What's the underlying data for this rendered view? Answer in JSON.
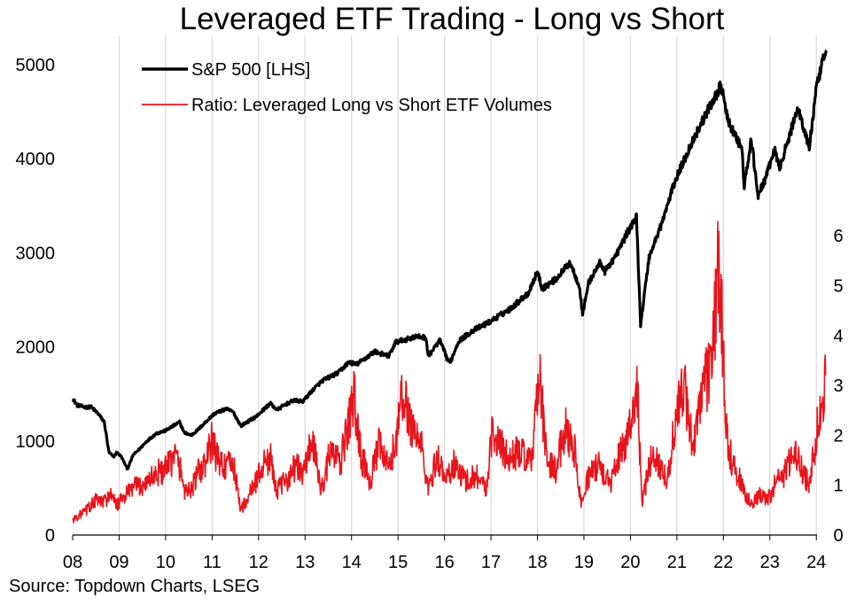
{
  "title": "Leveraged ETF Trading - Long vs Short",
  "source": "Source: Topdown Charts, LSEG",
  "colors": {
    "sp500": "#000000",
    "ratio": "#e8141b",
    "grid": "#d9d9d9"
  },
  "chart_data": {
    "type": "line",
    "title": "Leveraged ETF Trading - Long vs Short",
    "x_tick_labels": [
      "08",
      "09",
      "10",
      "11",
      "12",
      "13",
      "14",
      "15",
      "16",
      "17",
      "18",
      "19",
      "20",
      "21",
      "22",
      "23",
      "24"
    ],
    "x_range": [
      2008.0,
      2024.25
    ],
    "y_left": {
      "range": [
        0,
        5000
      ],
      "ticks": [
        "0",
        "1000",
        "2000",
        "3000",
        "4000",
        "5000"
      ]
    },
    "y_right": {
      "range": [
        0,
        6.3
      ],
      "ticks": [
        "0",
        "1",
        "2",
        "3",
        "4",
        "5",
        "6"
      ]
    },
    "grid": "vertical",
    "legend_position": "top-left",
    "series": [
      {
        "name": "S&P 500 [LHS]",
        "axis": "left",
        "color": "#000000",
        "points": [
          [
            2008.0,
            1450
          ],
          [
            2008.1,
            1380
          ],
          [
            2008.25,
            1360
          ],
          [
            2008.4,
            1360
          ],
          [
            2008.55,
            1290
          ],
          [
            2008.68,
            1200
          ],
          [
            2008.78,
            880
          ],
          [
            2008.88,
            830
          ],
          [
            2008.95,
            880
          ],
          [
            2009.05,
            830
          ],
          [
            2009.18,
            700
          ],
          [
            2009.3,
            850
          ],
          [
            2009.45,
            920
          ],
          [
            2009.6,
            1000
          ],
          [
            2009.8,
            1080
          ],
          [
            2010.0,
            1110
          ],
          [
            2010.3,
            1200
          ],
          [
            2010.4,
            1090
          ],
          [
            2010.55,
            1060
          ],
          [
            2010.7,
            1120
          ],
          [
            2010.9,
            1220
          ],
          [
            2011.05,
            1290
          ],
          [
            2011.3,
            1340
          ],
          [
            2011.45,
            1310
          ],
          [
            2011.62,
            1160
          ],
          [
            2011.75,
            1200
          ],
          [
            2011.95,
            1260
          ],
          [
            2012.25,
            1400
          ],
          [
            2012.4,
            1330
          ],
          [
            2012.55,
            1380
          ],
          [
            2012.75,
            1430
          ],
          [
            2012.95,
            1420
          ],
          [
            2013.2,
            1560
          ],
          [
            2013.4,
            1650
          ],
          [
            2013.7,
            1720
          ],
          [
            2013.95,
            1840
          ],
          [
            2014.1,
            1810
          ],
          [
            2014.5,
            1950
          ],
          [
            2014.8,
            1900
          ],
          [
            2014.95,
            2050
          ],
          [
            2015.4,
            2110
          ],
          [
            2015.6,
            2100
          ],
          [
            2015.65,
            1900
          ],
          [
            2015.9,
            2070
          ],
          [
            2016.05,
            1880
          ],
          [
            2016.12,
            1830
          ],
          [
            2016.3,
            2060
          ],
          [
            2016.6,
            2170
          ],
          [
            2016.95,
            2260
          ],
          [
            2017.4,
            2400
          ],
          [
            2017.8,
            2570
          ],
          [
            2018.0,
            2800
          ],
          [
            2018.1,
            2620
          ],
          [
            2018.4,
            2720
          ],
          [
            2018.7,
            2900
          ],
          [
            2018.9,
            2650
          ],
          [
            2018.97,
            2350
          ],
          [
            2019.1,
            2680
          ],
          [
            2019.35,
            2900
          ],
          [
            2019.45,
            2800
          ],
          [
            2019.7,
            2980
          ],
          [
            2019.95,
            3230
          ],
          [
            2020.13,
            3380
          ],
          [
            2020.22,
            2240
          ],
          [
            2020.4,
            2950
          ],
          [
            2020.7,
            3350
          ],
          [
            2020.95,
            3750
          ],
          [
            2021.3,
            4150
          ],
          [
            2021.6,
            4450
          ],
          [
            2021.95,
            4780
          ],
          [
            2022.1,
            4400
          ],
          [
            2022.4,
            4100
          ],
          [
            2022.45,
            3700
          ],
          [
            2022.6,
            4200
          ],
          [
            2022.75,
            3600
          ],
          [
            2022.95,
            3850
          ],
          [
            2023.1,
            4100
          ],
          [
            2023.2,
            3900
          ],
          [
            2023.4,
            4200
          ],
          [
            2023.6,
            4550
          ],
          [
            2023.8,
            4200
          ],
          [
            2023.85,
            4120
          ],
          [
            2024.0,
            4750
          ],
          [
            2024.15,
            5050
          ],
          [
            2024.22,
            5150
          ]
        ]
      },
      {
        "name": "Ratio: Leveraged Long vs Short ETF Volumes",
        "axis": "right",
        "color": "#e8141b",
        "points": [
          [
            2008.0,
            0.3
          ],
          [
            2008.15,
            0.4
          ],
          [
            2008.3,
            0.5
          ],
          [
            2008.5,
            0.7
          ],
          [
            2008.65,
            0.65
          ],
          [
            2008.8,
            0.8
          ],
          [
            2008.95,
            0.6
          ],
          [
            2009.1,
            0.75
          ],
          [
            2009.3,
            0.95
          ],
          [
            2009.5,
            1.0
          ],
          [
            2009.7,
            1.15
          ],
          [
            2009.85,
            1.25
          ],
          [
            2010.0,
            1.3
          ],
          [
            2010.2,
            1.6
          ],
          [
            2010.3,
            1.4
          ],
          [
            2010.4,
            0.9
          ],
          [
            2010.55,
            0.9
          ],
          [
            2010.7,
            1.25
          ],
          [
            2010.85,
            1.4
          ],
          [
            2011.0,
            1.9
          ],
          [
            2011.1,
            1.55
          ],
          [
            2011.3,
            1.35
          ],
          [
            2011.45,
            1.45
          ],
          [
            2011.62,
            0.5
          ],
          [
            2011.8,
            0.8
          ],
          [
            2011.95,
            1.1
          ],
          [
            2012.1,
            1.4
          ],
          [
            2012.25,
            1.55
          ],
          [
            2012.4,
            0.9
          ],
          [
            2012.6,
            1.1
          ],
          [
            2012.8,
            1.4
          ],
          [
            2012.95,
            1.2
          ],
          [
            2013.15,
            1.9
          ],
          [
            2013.35,
            0.9
          ],
          [
            2013.55,
            1.7
          ],
          [
            2013.75,
            1.4
          ],
          [
            2013.95,
            2.3
          ],
          [
            2014.05,
            2.8
          ],
          [
            2014.2,
            1.6
          ],
          [
            2014.4,
            1.1
          ],
          [
            2014.6,
            1.8
          ],
          [
            2014.8,
            1.3
          ],
          [
            2014.95,
            1.9
          ],
          [
            2015.1,
            2.8
          ],
          [
            2015.3,
            2.2
          ],
          [
            2015.5,
            1.8
          ],
          [
            2015.65,
            0.9
          ],
          [
            2015.85,
            1.6
          ],
          [
            2016.0,
            1.1
          ],
          [
            2016.2,
            1.4
          ],
          [
            2016.45,
            1.1
          ],
          [
            2016.7,
            1.2
          ],
          [
            2016.9,
            0.9
          ],
          [
            2017.0,
            2.0
          ],
          [
            2017.2,
            1.8
          ],
          [
            2017.4,
            1.5
          ],
          [
            2017.6,
            1.7
          ],
          [
            2017.85,
            1.4
          ],
          [
            2017.95,
            2.3
          ],
          [
            2018.05,
            3.1
          ],
          [
            2018.2,
            1.5
          ],
          [
            2018.4,
            1.3
          ],
          [
            2018.6,
            2.2
          ],
          [
            2018.8,
            1.7
          ],
          [
            2018.95,
            0.6
          ],
          [
            2019.1,
            1.2
          ],
          [
            2019.35,
            1.4
          ],
          [
            2019.55,
            1.0
          ],
          [
            2019.8,
            1.7
          ],
          [
            2020.0,
            2.2
          ],
          [
            2020.15,
            3.0
          ],
          [
            2020.25,
            0.6
          ],
          [
            2020.45,
            1.6
          ],
          [
            2020.65,
            1.4
          ],
          [
            2020.8,
            1.1
          ],
          [
            2020.95,
            2.2
          ],
          [
            2021.15,
            3.0
          ],
          [
            2021.35,
            1.8
          ],
          [
            2021.6,
            3.0
          ],
          [
            2021.75,
            3.4
          ],
          [
            2021.85,
            4.9
          ],
          [
            2021.9,
            5.5
          ],
          [
            2021.97,
            4.2
          ],
          [
            2022.05,
            2.2
          ],
          [
            2022.2,
            1.4
          ],
          [
            2022.4,
            1.0
          ],
          [
            2022.6,
            0.6
          ],
          [
            2022.8,
            0.8
          ],
          [
            2022.95,
            0.7
          ],
          [
            2023.1,
            1.0
          ],
          [
            2023.3,
            1.2
          ],
          [
            2023.5,
            1.7
          ],
          [
            2023.7,
            1.3
          ],
          [
            2023.85,
            1.0
          ],
          [
            2024.0,
            2.0
          ],
          [
            2024.1,
            2.6
          ],
          [
            2024.2,
            3.2
          ]
        ]
      }
    ]
  }
}
